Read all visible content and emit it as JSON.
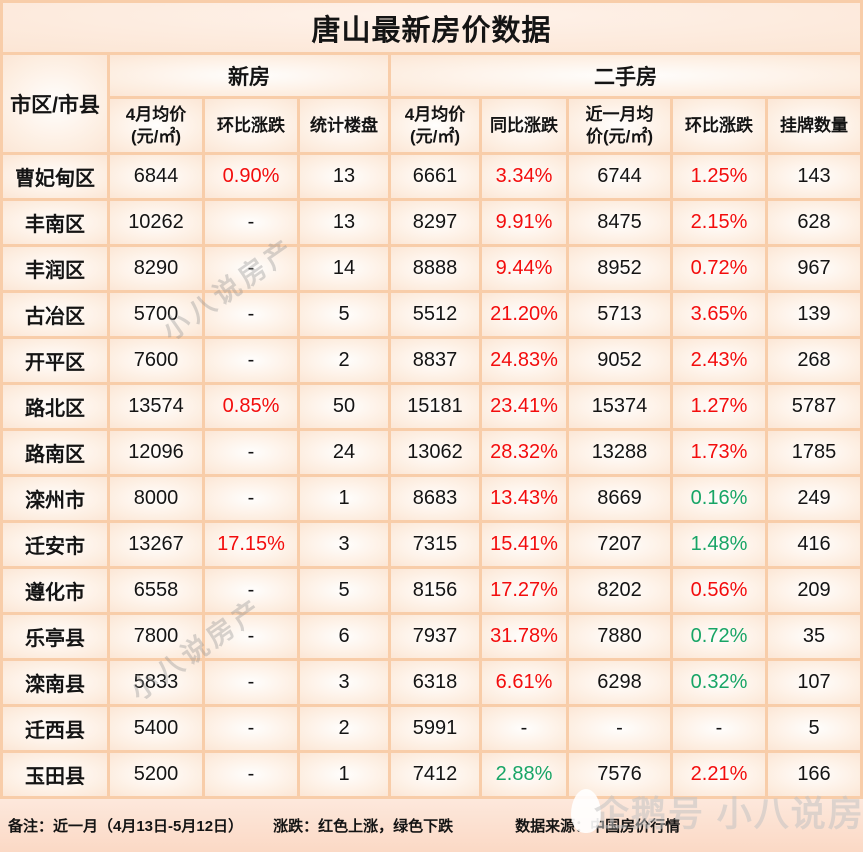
{
  "title": "唐山最新房价数据",
  "header": {
    "region_col": "市区/市县",
    "groups": [
      {
        "label": "新房",
        "cols": [
          "4月均价\n(元/㎡)",
          "环比涨跌",
          "统计楼盘"
        ]
      },
      {
        "label": "二手房",
        "cols": [
          "4月均价\n(元/㎡)",
          "同比涨跌",
          "近一月均\n价(元/㎡)",
          "环比涨跌",
          "挂牌数量"
        ]
      }
    ]
  },
  "rows": [
    {
      "cells": [
        {
          "t": "曹妃甸区"
        },
        {
          "t": "6844"
        },
        {
          "t": "0.90%",
          "c": "red"
        },
        {
          "t": "13"
        },
        {
          "t": "6661"
        },
        {
          "t": "3.34%",
          "c": "red"
        },
        {
          "t": "6744"
        },
        {
          "t": "1.25%",
          "c": "red"
        },
        {
          "t": "143"
        }
      ]
    },
    {
      "cells": [
        {
          "t": "丰南区"
        },
        {
          "t": "10262"
        },
        {
          "t": "-"
        },
        {
          "t": "13"
        },
        {
          "t": "8297"
        },
        {
          "t": "9.91%",
          "c": "red"
        },
        {
          "t": "8475"
        },
        {
          "t": "2.15%",
          "c": "red"
        },
        {
          "t": "628"
        }
      ]
    },
    {
      "cells": [
        {
          "t": "丰润区"
        },
        {
          "t": "8290"
        },
        {
          "t": "-"
        },
        {
          "t": "14"
        },
        {
          "t": "8888"
        },
        {
          "t": "9.44%",
          "c": "red"
        },
        {
          "t": "8952"
        },
        {
          "t": "0.72%",
          "c": "red"
        },
        {
          "t": "967"
        }
      ]
    },
    {
      "cells": [
        {
          "t": "古冶区"
        },
        {
          "t": "5700"
        },
        {
          "t": "-"
        },
        {
          "t": "5"
        },
        {
          "t": "5512"
        },
        {
          "t": "21.20%",
          "c": "red"
        },
        {
          "t": "5713"
        },
        {
          "t": "3.65%",
          "c": "red"
        },
        {
          "t": "139"
        }
      ]
    },
    {
      "cells": [
        {
          "t": "开平区"
        },
        {
          "t": "7600"
        },
        {
          "t": "-"
        },
        {
          "t": "2"
        },
        {
          "t": "8837"
        },
        {
          "t": "24.83%",
          "c": "red"
        },
        {
          "t": "9052"
        },
        {
          "t": "2.43%",
          "c": "red"
        },
        {
          "t": "268"
        }
      ]
    },
    {
      "cells": [
        {
          "t": "路北区"
        },
        {
          "t": "13574"
        },
        {
          "t": "0.85%",
          "c": "red"
        },
        {
          "t": "50"
        },
        {
          "t": "15181"
        },
        {
          "t": "23.41%",
          "c": "red"
        },
        {
          "t": "15374"
        },
        {
          "t": "1.27%",
          "c": "red"
        },
        {
          "t": "5787"
        }
      ]
    },
    {
      "cells": [
        {
          "t": "路南区"
        },
        {
          "t": "12096"
        },
        {
          "t": "-"
        },
        {
          "t": "24"
        },
        {
          "t": "13062"
        },
        {
          "t": "28.32%",
          "c": "red"
        },
        {
          "t": "13288"
        },
        {
          "t": "1.73%",
          "c": "red"
        },
        {
          "t": "1785"
        }
      ]
    },
    {
      "cells": [
        {
          "t": "滦州市"
        },
        {
          "t": "8000"
        },
        {
          "t": "-"
        },
        {
          "t": "1"
        },
        {
          "t": "8683"
        },
        {
          "t": "13.43%",
          "c": "red"
        },
        {
          "t": "8669"
        },
        {
          "t": "0.16%",
          "c": "green"
        },
        {
          "t": "249"
        }
      ]
    },
    {
      "cells": [
        {
          "t": "迁安市"
        },
        {
          "t": "13267"
        },
        {
          "t": "17.15%",
          "c": "red"
        },
        {
          "t": "3"
        },
        {
          "t": "7315"
        },
        {
          "t": "15.41%",
          "c": "red"
        },
        {
          "t": "7207"
        },
        {
          "t": "1.48%",
          "c": "green"
        },
        {
          "t": "416"
        }
      ]
    },
    {
      "cells": [
        {
          "t": "遵化市"
        },
        {
          "t": "6558"
        },
        {
          "t": "-"
        },
        {
          "t": "5"
        },
        {
          "t": "8156"
        },
        {
          "t": "17.27%",
          "c": "red"
        },
        {
          "t": "8202"
        },
        {
          "t": "0.56%",
          "c": "red"
        },
        {
          "t": "209"
        }
      ]
    },
    {
      "cells": [
        {
          "t": "乐亭县"
        },
        {
          "t": "7800"
        },
        {
          "t": "-"
        },
        {
          "t": "6"
        },
        {
          "t": "7937"
        },
        {
          "t": "31.78%",
          "c": "red"
        },
        {
          "t": "7880"
        },
        {
          "t": "0.72%",
          "c": "green"
        },
        {
          "t": "35"
        }
      ]
    },
    {
      "cells": [
        {
          "t": "滦南县"
        },
        {
          "t": "5833"
        },
        {
          "t": "-"
        },
        {
          "t": "3"
        },
        {
          "t": "6318"
        },
        {
          "t": "6.61%",
          "c": "red"
        },
        {
          "t": "6298"
        },
        {
          "t": "0.32%",
          "c": "green"
        },
        {
          "t": "107"
        }
      ]
    },
    {
      "cells": [
        {
          "t": "迁西县"
        },
        {
          "t": "5400"
        },
        {
          "t": "-"
        },
        {
          "t": "2"
        },
        {
          "t": "5991"
        },
        {
          "t": "-"
        },
        {
          "t": "-"
        },
        {
          "t": "-"
        },
        {
          "t": "5"
        }
      ]
    },
    {
      "cells": [
        {
          "t": "玉田县"
        },
        {
          "t": "5200"
        },
        {
          "t": "-"
        },
        {
          "t": "1"
        },
        {
          "t": "7412"
        },
        {
          "t": "2.88%",
          "c": "green"
        },
        {
          "t": "7576"
        },
        {
          "t": "2.21%",
          "c": "red"
        },
        {
          "t": "166"
        }
      ]
    }
  ],
  "footer": {
    "remark": "备注：近一月（4月13日-5月12日）",
    "legend": "涨跌：红色上涨，绿色下跌",
    "source": "数据来源：中国房价行情"
  },
  "watermarks": {
    "diagonal": "小八说房产",
    "brand": "企鹅号 小八说房产"
  },
  "colors": {
    "up_red": "#f30d0d",
    "down_green": "#18a566",
    "border_peach": "#f8cda9"
  }
}
